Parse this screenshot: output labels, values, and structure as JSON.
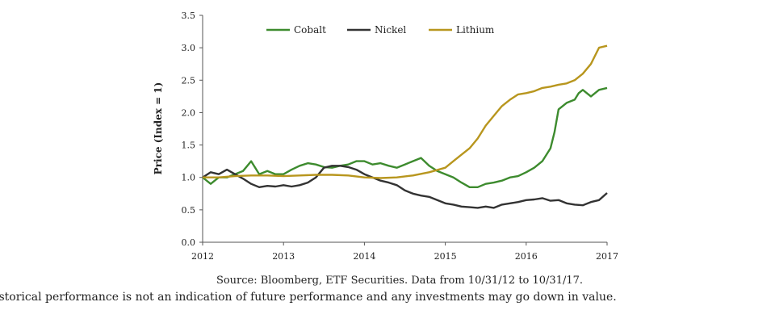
{
  "chart_data": {
    "type": "line",
    "ylabel": "Price (Index = 1)",
    "xlabel": "",
    "y_ticks": [
      "0.0",
      "0.5",
      "1.0",
      "1.5",
      "2.0",
      "2.5",
      "3.0",
      "3.5"
    ],
    "ylim": [
      0,
      3.5
    ],
    "x_ticks": [
      "2012",
      "2013",
      "2014",
      "2015",
      "2016",
      "2017"
    ],
    "xlim": [
      2012.0,
      2017.0
    ],
    "grid": false,
    "legend": "top",
    "series": [
      {
        "name": "Cobalt",
        "color": "#3d8b2e",
        "x": [
          2012.0,
          2012.1,
          2012.2,
          2012.3,
          2012.4,
          2012.5,
          2012.6,
          2012.7,
          2012.8,
          2012.9,
          2013.0,
          2013.1,
          2013.2,
          2013.3,
          2013.4,
          2013.5,
          2013.6,
          2013.7,
          2013.8,
          2013.9,
          2014.0,
          2014.1,
          2014.2,
          2014.3,
          2014.4,
          2014.5,
          2014.6,
          2014.7,
          2014.8,
          2014.9,
          2015.0,
          2015.1,
          2015.2,
          2015.3,
          2015.4,
          2015.5,
          2015.6,
          2015.7,
          2015.8,
          2015.9,
          2016.0,
          2016.1,
          2016.2,
          2016.3,
          2016.35,
          2016.4,
          2016.5,
          2016.6,
          2016.65,
          2016.7,
          2016.8,
          2016.9,
          2017.0
        ],
        "values": [
          1.0,
          0.9,
          1.0,
          1.0,
          1.05,
          1.1,
          1.25,
          1.05,
          1.1,
          1.05,
          1.05,
          1.12,
          1.18,
          1.22,
          1.2,
          1.16,
          1.15,
          1.18,
          1.2,
          1.25,
          1.25,
          1.2,
          1.22,
          1.18,
          1.15,
          1.2,
          1.25,
          1.3,
          1.18,
          1.1,
          1.05,
          1.0,
          0.92,
          0.85,
          0.85,
          0.9,
          0.92,
          0.95,
          1.0,
          1.02,
          1.08,
          1.15,
          1.25,
          1.45,
          1.7,
          2.05,
          2.15,
          2.2,
          2.3,
          2.35,
          2.25,
          2.35,
          2.38
        ]
      },
      {
        "name": "Nickel",
        "color": "#333333",
        "x": [
          2012.0,
          2012.1,
          2012.2,
          2012.3,
          2012.4,
          2012.5,
          2012.6,
          2012.7,
          2012.8,
          2012.9,
          2013.0,
          2013.1,
          2013.2,
          2013.3,
          2013.4,
          2013.5,
          2013.6,
          2013.7,
          2013.8,
          2013.9,
          2014.0,
          2014.1,
          2014.2,
          2014.3,
          2014.4,
          2014.5,
          2014.6,
          2014.7,
          2014.8,
          2014.9,
          2015.0,
          2015.1,
          2015.2,
          2015.3,
          2015.4,
          2015.5,
          2015.6,
          2015.7,
          2015.8,
          2015.9,
          2016.0,
          2016.1,
          2016.2,
          2016.3,
          2016.4,
          2016.5,
          2016.6,
          2016.7,
          2016.8,
          2016.9,
          2017.0
        ],
        "values": [
          1.0,
          1.08,
          1.05,
          1.12,
          1.05,
          0.98,
          0.9,
          0.85,
          0.87,
          0.86,
          0.88,
          0.86,
          0.88,
          0.92,
          1.0,
          1.15,
          1.18,
          1.18,
          1.16,
          1.12,
          1.05,
          1.0,
          0.95,
          0.92,
          0.88,
          0.8,
          0.75,
          0.72,
          0.7,
          0.65,
          0.6,
          0.58,
          0.55,
          0.54,
          0.53,
          0.55,
          0.53,
          0.58,
          0.6,
          0.62,
          0.65,
          0.66,
          0.68,
          0.64,
          0.65,
          0.6,
          0.58,
          0.57,
          0.62,
          0.65,
          0.76
        ]
      },
      {
        "name": "Lithium",
        "color": "#b8961e",
        "x": [
          2012.0,
          2012.2,
          2012.4,
          2012.6,
          2012.8,
          2013.0,
          2013.2,
          2013.4,
          2013.6,
          2013.8,
          2014.0,
          2014.2,
          2014.4,
          2014.6,
          2014.8,
          2015.0,
          2015.1,
          2015.2,
          2015.3,
          2015.4,
          2015.5,
          2015.6,
          2015.7,
          2015.8,
          2015.9,
          2016.0,
          2016.1,
          2016.2,
          2016.3,
          2016.4,
          2016.5,
          2016.6,
          2016.7,
          2016.8,
          2016.9,
          2017.0
        ],
        "values": [
          1.0,
          1.0,
          1.02,
          1.03,
          1.03,
          1.02,
          1.03,
          1.04,
          1.04,
          1.03,
          1.0,
          0.99,
          1.0,
          1.03,
          1.08,
          1.15,
          1.25,
          1.35,
          1.45,
          1.6,
          1.8,
          1.95,
          2.1,
          2.2,
          2.28,
          2.3,
          2.33,
          2.38,
          2.4,
          2.43,
          2.45,
          2.5,
          2.6,
          2.75,
          3.0,
          3.03
        ]
      }
    ]
  },
  "source_text": "Source: Bloomberg, ETF Securities. Data from 10/31/12 to 10/31/17.",
  "disclaimer_text": "istorical performance is not an indication of future performance and any investments may go down in value."
}
